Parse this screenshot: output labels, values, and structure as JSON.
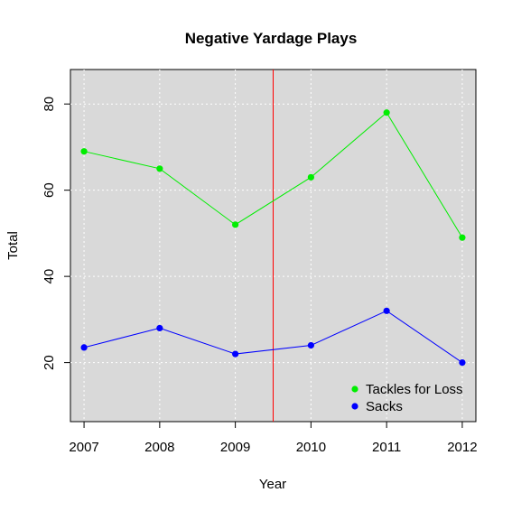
{
  "chart_data": {
    "type": "line",
    "title": "Negative Yardage Plays",
    "xlabel": "Year",
    "ylabel": "Total",
    "x": [
      2007,
      2008,
      2009,
      2010,
      2011,
      2012
    ],
    "xlim": [
      2006.82,
      2012.18
    ],
    "ylim": [
      6.3,
      88.0
    ],
    "yticks": [
      20,
      40,
      60,
      80
    ],
    "series": [
      {
        "name": "Tackles for Loss",
        "color": "#00ee00",
        "values": [
          69,
          65,
          52,
          63,
          78,
          49
        ]
      },
      {
        "name": "Sacks",
        "color": "#0000ff",
        "values": [
          23.5,
          28,
          22,
          24,
          32,
          20
        ]
      }
    ],
    "vertical_line": {
      "x": 2009.5,
      "color": "#ff0000"
    },
    "grid": true,
    "grid_style": "dotted",
    "background": "#d9d9d9",
    "legend_position": "bottom-right"
  }
}
